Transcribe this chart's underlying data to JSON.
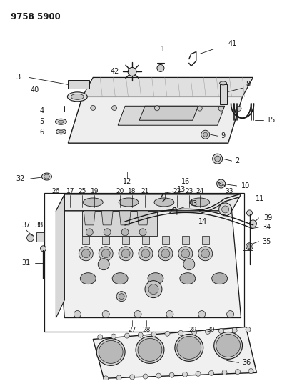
{
  "title": "9758 5900",
  "bg_color": "#ffffff",
  "line_color": "#1a1a1a",
  "fig_width": 4.1,
  "fig_height": 5.33,
  "dpi": 100
}
